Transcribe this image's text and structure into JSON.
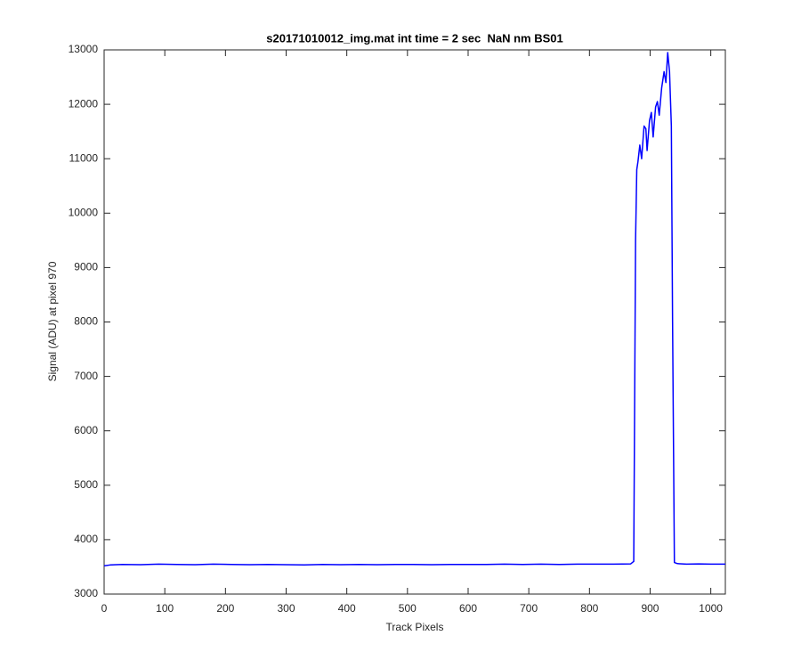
{
  "chart_data": {
    "type": "line",
    "title": "s20171010012_img.mat int time = 2 sec  NaN nm BS01",
    "xlabel": "Track Pixels",
    "ylabel": "Signal (ADU) at pixel 970",
    "x": [
      0,
      10,
      30,
      60,
      90,
      120,
      150,
      180,
      210,
      240,
      270,
      300,
      330,
      360,
      390,
      420,
      450,
      480,
      510,
      540,
      570,
      600,
      630,
      660,
      690,
      720,
      750,
      780,
      810,
      840,
      868,
      873,
      876,
      878,
      880,
      883,
      886,
      890,
      893,
      895,
      899,
      902,
      905,
      909,
      912,
      915,
      919,
      923,
      926,
      929,
      932,
      935,
      937,
      940,
      945,
      960,
      980,
      1000,
      1024
    ],
    "series": [
      {
        "name": "signal",
        "color": "#0000ff",
        "values": [
          3520,
          3535,
          3545,
          3540,
          3550,
          3545,
          3540,
          3550,
          3545,
          3540,
          3545,
          3540,
          3535,
          3545,
          3540,
          3545,
          3540,
          3545,
          3545,
          3540,
          3545,
          3545,
          3545,
          3550,
          3545,
          3550,
          3545,
          3550,
          3550,
          3550,
          3555,
          3600,
          9500,
          10800,
          10950,
          11250,
          11000,
          11600,
          11550,
          11150,
          11700,
          11850,
          11400,
          11950,
          12050,
          11800,
          12300,
          12600,
          12400,
          12950,
          12600,
          11600,
          8000,
          3580,
          3560,
          3550,
          3555,
          3550,
          3550
        ]
      }
    ],
    "xlim": [
      0,
      1024
    ],
    "ylim": [
      3000,
      13000
    ],
    "xticks": [
      0,
      100,
      200,
      300,
      400,
      500,
      600,
      700,
      800,
      900,
      1000
    ],
    "yticks": [
      3000,
      4000,
      5000,
      6000,
      7000,
      8000,
      9000,
      10000,
      11000,
      12000,
      13000
    ]
  }
}
